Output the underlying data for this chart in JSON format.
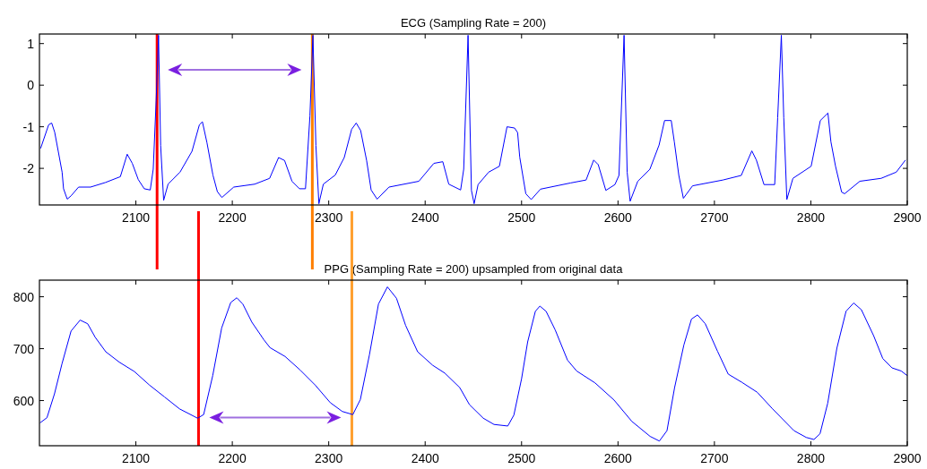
{
  "chart_data": [
    {
      "type": "line",
      "title": "ECG (Sampling Rate = 200)",
      "xlim": [
        2000,
        2900
      ],
      "xticks": [
        2100,
        2200,
        2300,
        2400,
        2500,
        2600,
        2700,
        2800,
        2900
      ],
      "ylim": [
        -2.88,
        1.23
      ],
      "yticks": [
        -2,
        -1,
        0,
        1
      ],
      "x": [
        2001.2,
        2009.6,
        2012.7,
        2015.8,
        2019.5,
        2023.5,
        2025,
        2028.8,
        2032.8,
        2040.6,
        2053,
        2068.4,
        2083.9,
        2091,
        2096.3,
        2102.5,
        2108.7,
        2114.9,
        2118,
        2121,
        2123.5,
        2125.7,
        2128.8,
        2133.4,
        2145.8,
        2158.2,
        2165.9,
        2169,
        2173.7,
        2179.9,
        2184.5,
        2189.2,
        2201.5,
        2223.2,
        2238.7,
        2248,
        2254.2,
        2261.9,
        2269.7,
        2275.9,
        2280.5,
        2283.6,
        2286.7,
        2289.8,
        2294.4,
        2306.8,
        2316.1,
        2323.8,
        2328.5,
        2333.1,
        2339.3,
        2344,
        2350.2,
        2362.5,
        2393.5,
        2409,
        2418.3,
        2424.5,
        2436.8,
        2440,
        2444.5,
        2448,
        2450.8,
        2454.9,
        2465.9,
        2477,
        2484.9,
        2492.7,
        2495.9,
        2498.1,
        2504.4,
        2510,
        2519.6,
        2551,
        2566.9,
        2574.8,
        2579.5,
        2587.4,
        2596.8,
        2601,
        2606.3,
        2609.5,
        2612.6,
        2620.5,
        2633.1,
        2642.6,
        2648.3,
        2655.2,
        2658.4,
        2663.1,
        2667.8,
        2677.3,
        2708.8,
        2727.8,
        2738.8,
        2743.5,
        2751.4,
        2762.5,
        2765.6,
        2769.4,
        2771.9,
        2775.1,
        2781.4,
        2800.3,
        2809.8,
        2817.7,
        2820.8,
        2825.6,
        2831.9,
        2835,
        2850.8,
        2872.9,
        2888.6,
        2898.1
      ],
      "series": [
        {
          "color": "#0000ff",
          "values": [
            -1.52,
            -0.95,
            -0.91,
            -1.13,
            -1.59,
            -2.09,
            -2.49,
            -2.74,
            -2.66,
            -2.45,
            -2.45,
            -2.34,
            -2.2,
            -1.66,
            -1.88,
            -2.27,
            -2.49,
            -2.52,
            -2.02,
            -0.38,
            1.2,
            -1.45,
            -2.77,
            -2.38,
            -2.09,
            -1.59,
            -0.95,
            -0.88,
            -1.38,
            -2.16,
            -2.56,
            -2.7,
            -2.45,
            -2.38,
            -2.24,
            -1.74,
            -1.81,
            -2.31,
            -2.49,
            -2.49,
            -0.74,
            1.2,
            -1.45,
            -2.85,
            -2.38,
            -2.16,
            -1.74,
            -1.06,
            -0.91,
            -1.09,
            -1.81,
            -2.52,
            -2.74,
            -2.45,
            -2.31,
            -1.88,
            -1.84,
            -2.38,
            -2.52,
            -2.02,
            1.2,
            -2.53,
            -2.85,
            -2.39,
            -2.09,
            -1.95,
            -1.0,
            -1.03,
            -1.14,
            -1.73,
            -2.61,
            -2.75,
            -2.5,
            -2.35,
            -2.28,
            -1.8,
            -1.91,
            -2.53,
            -2.39,
            -2.17,
            1.2,
            -2.09,
            -2.79,
            -2.31,
            -2.02,
            -1.44,
            -0.85,
            -0.85,
            -1.36,
            -2.17,
            -2.72,
            -2.42,
            -2.28,
            -2.17,
            -1.58,
            -1.8,
            -2.39,
            -2.39,
            -0.78,
            1.2,
            -0.78,
            -2.75,
            -2.24,
            -1.95,
            -0.85,
            -0.67,
            -1.36,
            -1.95,
            -2.57,
            -2.61,
            -2.31,
            -2.24,
            -2.09,
            -1.8
          ]
        }
      ],
      "ref_lines": [
        {
          "axis": "x",
          "value": 2122,
          "color": "#ff0000"
        },
        {
          "axis": "x",
          "value": 2283,
          "color": "#ff7f00"
        }
      ]
    },
    {
      "type": "line",
      "title": "PPG (Sampling Rate = 200) upsampled from original data",
      "xlim": [
        2000,
        2900
      ],
      "xticks": [
        2100,
        2200,
        2300,
        2400,
        2500,
        2600,
        2700,
        2800,
        2900
      ],
      "ylim": [
        513,
        832
      ],
      "yticks": [
        600,
        700,
        800
      ],
      "x": [
        2000.6,
        2007.8,
        2015.6,
        2023.4,
        2032.8,
        2042.2,
        2050,
        2057.8,
        2068.8,
        2082.8,
        2098.4,
        2114,
        2129.7,
        2145.3,
        2164,
        2170.3,
        2179.7,
        2189,
        2198.4,
        2204.7,
        2210.9,
        2220.3,
        2232.8,
        2239.1,
        2254.7,
        2270.3,
        2285.9,
        2301.6,
        2314.1,
        2325,
        2332.8,
        2342.2,
        2351.6,
        2360.9,
        2370.3,
        2379.7,
        2392.2,
        2407.8,
        2420.3,
        2435.9,
        2446,
        2460.3,
        2471.4,
        2485.7,
        2492,
        2500,
        2506.3,
        2514.3,
        2519,
        2525.4,
        2534.9,
        2547.6,
        2557.1,
        2576.2,
        2595.9,
        2614.3,
        2633.3,
        2642.9,
        2650.8,
        2658.7,
        2668.3,
        2676.2,
        2682.5,
        2690.5,
        2703.2,
        2714.3,
        2728.6,
        2744.4,
        2760.3,
        2782.5,
        2795.2,
        2803.2,
        2809.5,
        2817.5,
        2827,
        2836.5,
        2844.4,
        2852.4,
        2865.1,
        2874.6,
        2884.1,
        2893.7,
        2900
      ],
      "series": [
        {
          "color": "#0000ff",
          "values": [
            557,
            567,
            613,
            671,
            734,
            755,
            748,
            722,
            694,
            674,
            656,
            630,
            607,
            584,
            566,
            573,
            648,
            740,
            789,
            798,
            786,
            751,
            717,
            702,
            685,
            659,
            630,
            596,
            579,
            573,
            602,
            688,
            786,
            819,
            797,
            745,
            694,
            668,
            653,
            625,
            592,
            566,
            554,
            551,
            572,
            642,
            713,
            772,
            782,
            772,
            736,
            678,
            657,
            634,
            601,
            560,
            531,
            522,
            542,
            625,
            707,
            757,
            765,
            748,
            695,
            651,
            635,
            616,
            584,
            542,
            529,
            525,
            536,
            595,
            701,
            772,
            788,
            775,
            725,
            681,
            663,
            657,
            648
          ]
        }
      ],
      "ref_lines": [
        {
          "axis": "x",
          "value": 2165,
          "color": "#ff0000"
        },
        {
          "axis": "x",
          "value": 2324,
          "color": "#ffa030"
        }
      ]
    }
  ]
}
